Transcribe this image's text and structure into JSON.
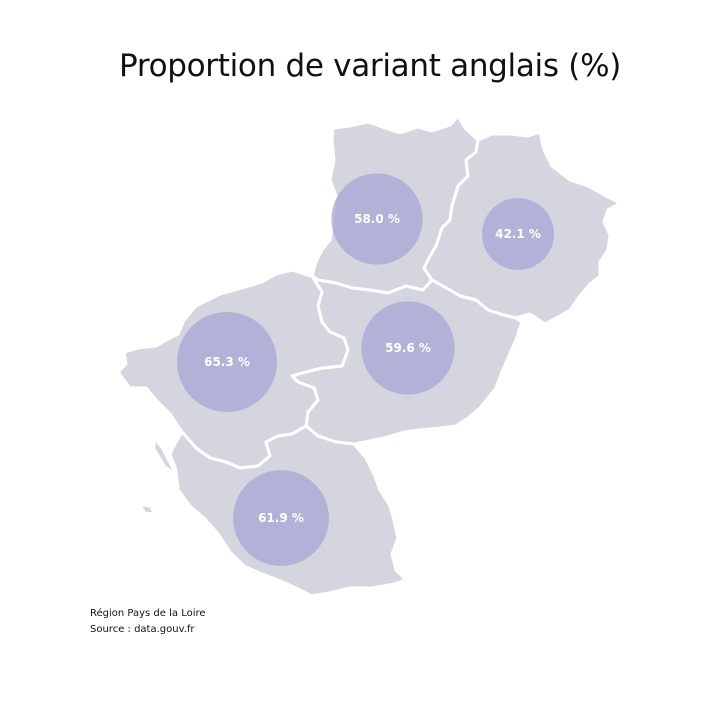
{
  "title": "Proportion de variant anglais (%)",
  "colors": {
    "land": "#d5d5e0",
    "border": "#ffffff",
    "bubble": "#a5a5d6",
    "bubble_text": "#ffffff"
  },
  "departments": [
    {
      "id": "mayenne",
      "value": 58.0,
      "label": "58.0 %"
    },
    {
      "id": "sarthe",
      "value": 42.1,
      "label": "42.1 %"
    },
    {
      "id": "maine-et-loire",
      "value": 59.6,
      "label": "59.6 %"
    },
    {
      "id": "loire-atlantique",
      "value": 65.3,
      "label": "65.3 %"
    },
    {
      "id": "vendee",
      "value": 61.9,
      "label": "61.9 %"
    }
  ],
  "footer": {
    "line1": "Région Pays de la Loire",
    "line2": "Source : data.gouv.fr"
  }
}
